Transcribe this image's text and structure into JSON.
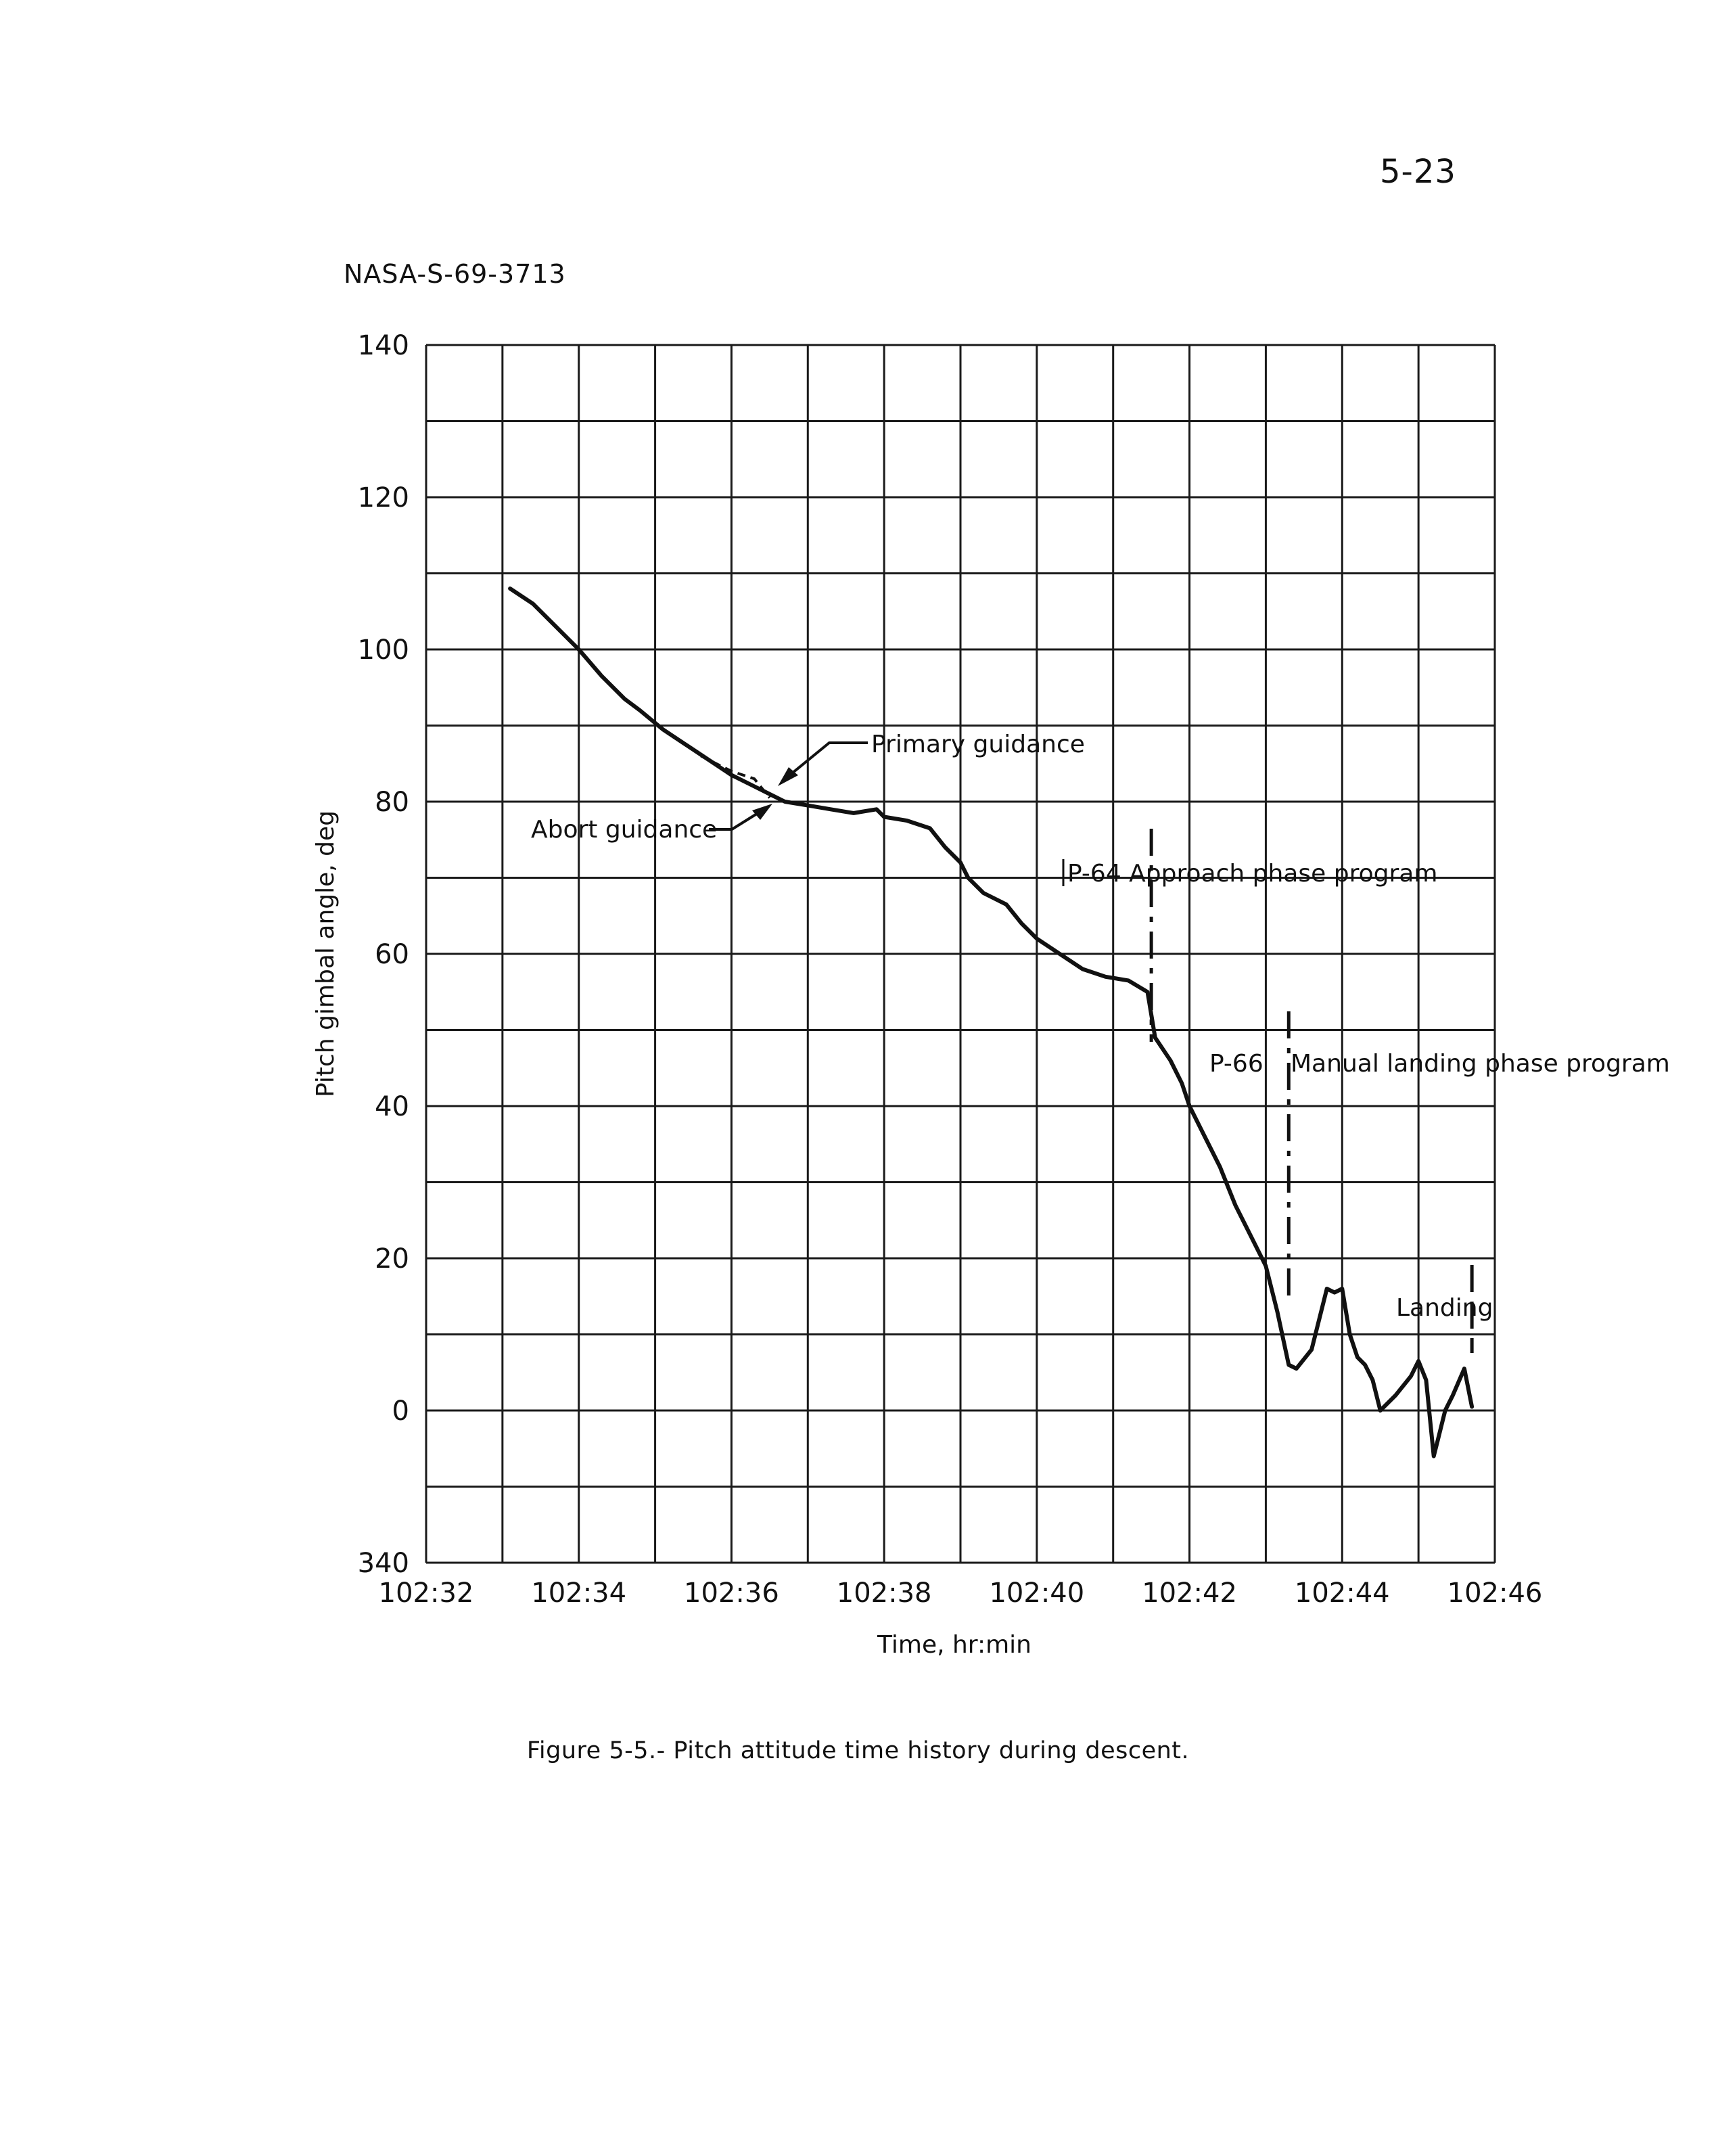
{
  "page_number": "5-23",
  "doc_id": "NASA-S-69-3713",
  "caption": "Figure 5-5.- Pitch attitude time history during descent.",
  "colors": {
    "ink": "#111111",
    "grid": "#1a1a1a",
    "paper": "#ffffff"
  },
  "chart_data": {
    "type": "line",
    "title": "",
    "xlabel": "Time, hr:min",
    "ylabel": "Pitch gimbal angle, deg",
    "x_ticks": [
      "102:32",
      "102:34",
      "102:36",
      "102:38",
      "102:40",
      "102:42",
      "102:44",
      "102:46"
    ],
    "y_ticks": [
      "340",
      "0",
      "20",
      "40",
      "60",
      "80",
      "100",
      "120",
      "140"
    ],
    "xlim_minutes_after_102h": [
      32,
      46
    ],
    "ylim_deg_continuous": [
      -20,
      140
    ],
    "y_wrap_note": "values below 0 shown as 340-360",
    "grid": true,
    "legend": "none",
    "series": [
      {
        "x": [
          33.1,
          33.4,
          33.7,
          34.0,
          34.3,
          34.6,
          34.8,
          35.1,
          35.4,
          35.7,
          36.0,
          36.3,
          36.5,
          36.7,
          37.0,
          37.3,
          37.6,
          37.9,
          38.0,
          38.3,
          38.6,
          38.8,
          39.0,
          39.1,
          39.3,
          39.6,
          39.8,
          40.0,
          40.3,
          40.6,
          40.9,
          41.2,
          41.45,
          41.55,
          41.75,
          41.9,
          42.0,
          42.2,
          42.4,
          42.6,
          42.8,
          43.0,
          43.15,
          43.3,
          43.4,
          43.6,
          43.8,
          43.9,
          44.0,
          44.1,
          44.2,
          44.3,
          44.4,
          44.5,
          44.7,
          44.9,
          45.0,
          45.1,
          45.2,
          45.25,
          45.35,
          45.45,
          45.6,
          45.7
        ],
        "y": [
          108,
          106,
          103,
          100,
          96.5,
          93.5,
          92,
          89.5,
          87.5,
          85.5,
          83.5,
          82,
          81,
          80,
          79.5,
          79,
          78.5,
          79,
          78,
          77.5,
          76.5,
          74,
          72,
          70,
          68,
          66.5,
          64,
          62,
          60,
          58,
          57,
          56.5,
          55,
          49,
          46,
          43,
          40,
          36,
          32,
          27,
          23,
          19,
          13,
          6,
          5.5,
          8,
          16,
          15.5,
          16,
          10,
          7,
          6,
          4,
          0,
          2,
          4.5,
          6.5,
          4,
          -6,
          -4,
          0,
          2,
          5.5,
          0.5
        ]
      }
    ],
    "annotations": [
      {
        "text": "Primary guidance",
        "x": 36.8,
        "y": 81
      },
      {
        "text": "Abort guidance",
        "x": 36.8,
        "y": 80
      },
      {
        "text": "P-64 Approach phase program",
        "x": 41.5,
        "y": 70
      },
      {
        "text": "P-66",
        "x": 42.3,
        "y": 45.5
      },
      {
        "text": "Manual landing phase program",
        "x": 43.3,
        "y": 45
      },
      {
        "text": "Landing",
        "x": 45.7,
        "y": 14
      }
    ]
  }
}
